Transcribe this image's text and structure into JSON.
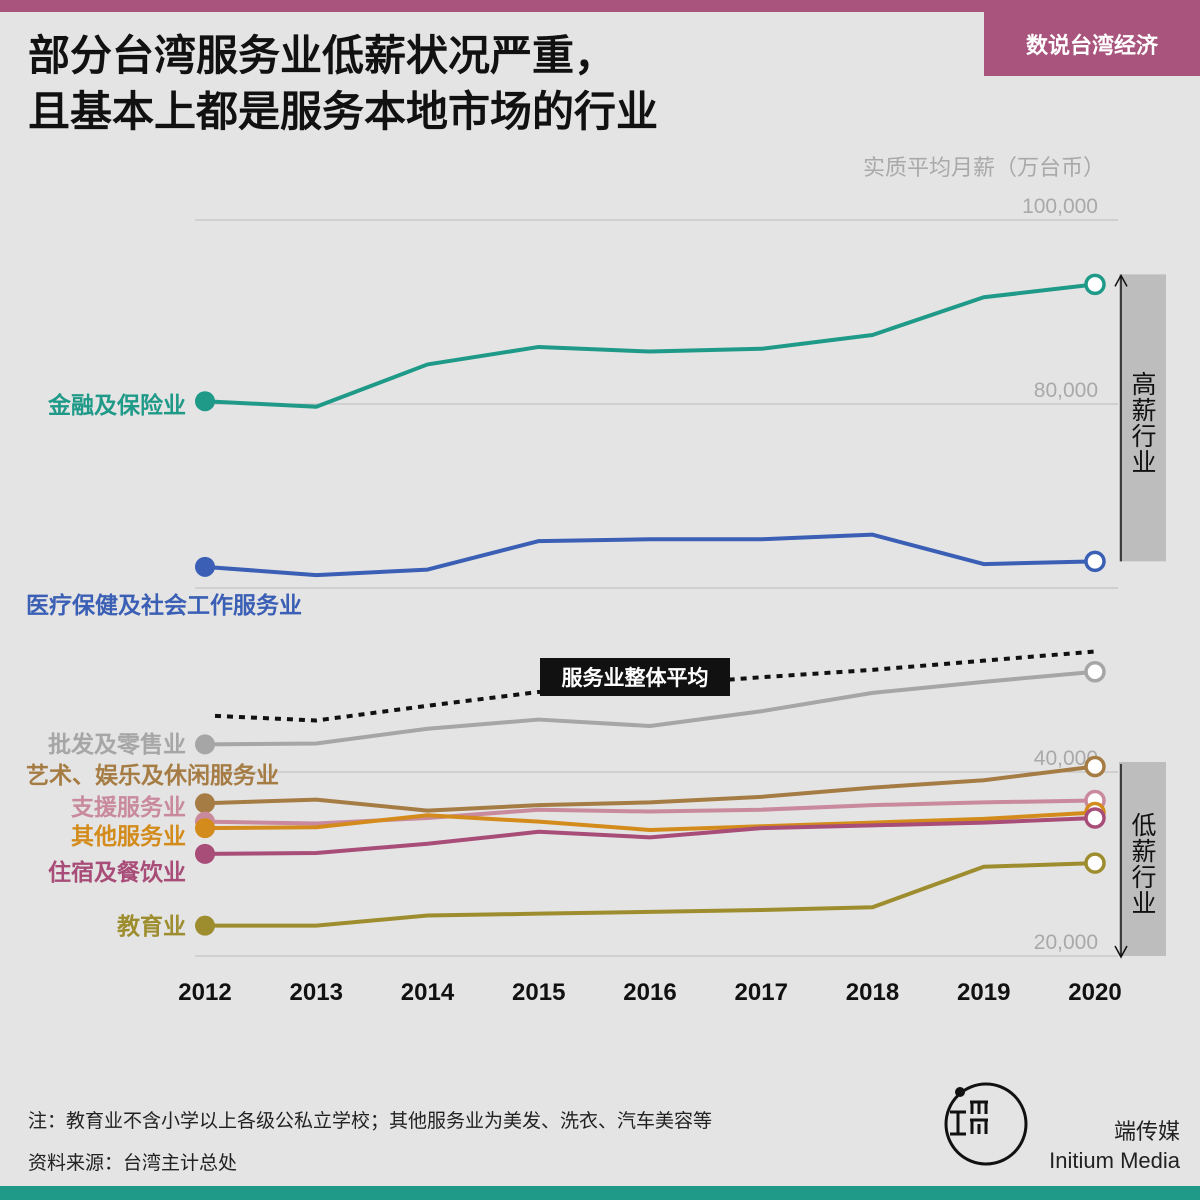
{
  "header": {
    "title_line1": "部分台湾服务业低薪状况严重，",
    "title_line2": "且基本上都是服务本地市场的行业",
    "tag": "数说台湾经济",
    "colors": {
      "accent": "#a8547c",
      "footer": "#1f9a88"
    }
  },
  "notes": {
    "note": "注：教育业不含小学以上各级公私立学校；其他服务业为美发、洗衣、汽车美容等",
    "source": "资料来源：台湾主计总处"
  },
  "brand": {
    "cn": "端传媒",
    "en": "Initium Media",
    "logo_icon": "initium-logo-icon"
  },
  "chart_data": {
    "type": "line",
    "unit_label": "实质平均月薪（万台币）",
    "x": [
      "2012",
      "2013",
      "2014",
      "2015",
      "2016",
      "2017",
      "2018",
      "2019",
      "2020"
    ],
    "ylim": [
      20000,
      100000
    ],
    "yticks": [
      {
        "value": 20000,
        "label": "20,000"
      },
      {
        "value": 40000,
        "label": "40,000"
      },
      {
        "value": 80000,
        "label": "80,000"
      },
      {
        "value": 100000,
        "label": "100,000"
      }
    ],
    "grid_values": [
      20000,
      40000,
      60000,
      80000,
      100000
    ],
    "grid": true,
    "series": [
      {
        "name": "金融及保险业",
        "color": "#1f9a88",
        "values": [
          80300,
          79700,
          84300,
          86200,
          85700,
          86000,
          87500,
          91600,
          93000
        ]
      },
      {
        "name": "医疗保健及社会工作服务业",
        "color": "#3a5fb5",
        "values": [
          62300,
          61400,
          62000,
          65100,
          65300,
          65300,
          65800,
          62600,
          62900
        ]
      },
      {
        "name": "批发及零售业",
        "color": "#a6a6a6",
        "values": [
          43000,
          43100,
          44700,
          45700,
          45000,
          46600,
          48600,
          49800,
          50900
        ]
      },
      {
        "name": "艺术、娱乐及休闲服务业",
        "color": "#a67c45",
        "values": [
          36600,
          37000,
          35800,
          36400,
          36700,
          37300,
          38300,
          39100,
          40600
        ]
      },
      {
        "name": "支援服务业",
        "color": "#c98a9d",
        "values": [
          34600,
          34400,
          35000,
          35900,
          35700,
          35900,
          36400,
          36700,
          36900
        ]
      },
      {
        "name": "其他服务业",
        "color": "#d38b1c",
        "values": [
          33900,
          34000,
          35300,
          34600,
          33700,
          34100,
          34500,
          34900,
          35600
        ]
      },
      {
        "name": "住宿及餐饮业",
        "color": "#a84c78",
        "values": [
          31100,
          31200,
          32200,
          33500,
          32900,
          33900,
          34200,
          34500,
          35000
        ]
      },
      {
        "name": "教育业",
        "color": "#9e8d2e",
        "values": [
          23300,
          23300,
          24400,
          24600,
          24800,
          25000,
          25300,
          29700,
          30100
        ]
      }
    ],
    "average": {
      "label": "服务业整体平均",
      "values": [
        46100,
        45600,
        47200,
        48700,
        49400,
        50300,
        51100,
        52100,
        53100
      ]
    },
    "brackets": [
      {
        "label": "高薪行业",
        "from": 62900,
        "to": 93000
      },
      {
        "label": "低薪行业",
        "from": 20000,
        "to": 40000
      }
    ]
  }
}
